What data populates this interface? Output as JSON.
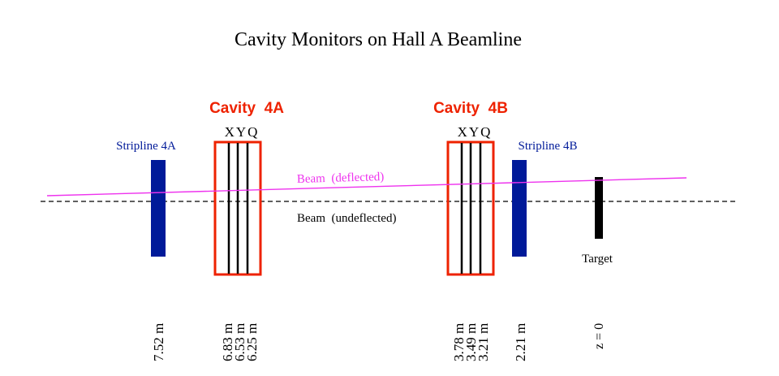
{
  "title": "Cavity Monitors on Hall A  Beamline",
  "colors": {
    "cavity": "#ee2200",
    "stripline": "#001a99",
    "deflected_beam": "#ee33ee",
    "beam": "#000000",
    "target": "#000000"
  },
  "cavities": [
    {
      "label": "Cavity  4A",
      "channels": "XYQ",
      "positions": [
        "6.83 m",
        "6.53 m",
        "6.25 m"
      ]
    },
    {
      "label": "Cavity  4B",
      "channels": "XYQ",
      "positions": [
        "3.78 m",
        "3.49 m",
        "3.21 m"
      ]
    }
  ],
  "striplines": [
    {
      "label": "Stripline 4A",
      "position": "7.52 m"
    },
    {
      "label": "Stripline 4B",
      "position": "2.21 m"
    }
  ],
  "target": {
    "label": "Target",
    "position": "z = 0"
  },
  "beams": {
    "deflected_label": "Beam  (deflected)",
    "undeflected_label": "Beam  (undeflected)"
  }
}
